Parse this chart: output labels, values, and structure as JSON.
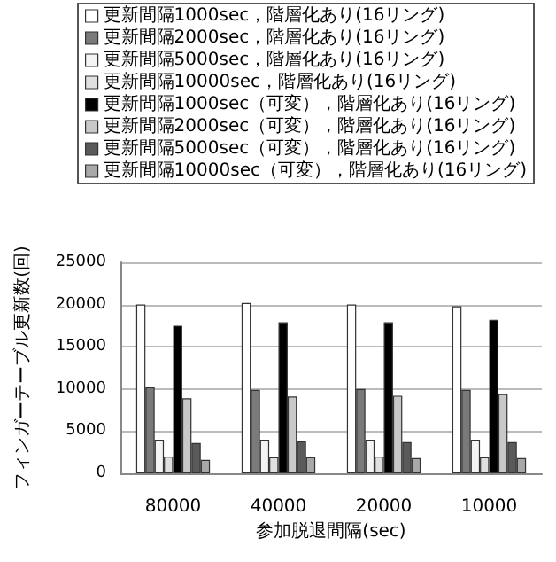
{
  "chart_data": {
    "type": "bar",
    "xlabel": "参加脱退間隔(sec)",
    "ylabel": "フィンガーテーブル更新数(回)",
    "categories": [
      "80000",
      "40000",
      "20000",
      "10000"
    ],
    "series": [
      {
        "name": "更新間隔1000sec，階層化あり(16リング)",
        "color": "#ffffff",
        "values": [
          20000,
          20200,
          20000,
          19800
        ]
      },
      {
        "name": "更新間隔2000sec，階層化あり(16リング)",
        "color": "#7a7a7a",
        "values": [
          10200,
          9900,
          10000,
          9900
        ]
      },
      {
        "name": "更新間隔5000sec，階層化あり(16リング)",
        "color": "#f4f4f4",
        "values": [
          4000,
          4000,
          4000,
          4000
        ]
      },
      {
        "name": "更新間隔10000sec，階層化あり(16リング)",
        "color": "#e0e0e0",
        "values": [
          2000,
          1900,
          2000,
          1900
        ]
      },
      {
        "name": "更新間隔1000sec（可変），階層化あり(16リング)",
        "color": "#000000",
        "values": [
          17500,
          17900,
          17900,
          18200
        ]
      },
      {
        "name": "更新間隔2000sec（可変），階層化あり(16リング)",
        "color": "#c8c8c8",
        "values": [
          8900,
          9100,
          9200,
          9400
        ]
      },
      {
        "name": "更新間隔5000sec（可変），階層化あり(16リング)",
        "color": "#5a5a5a",
        "values": [
          3600,
          3800,
          3700,
          3700
        ]
      },
      {
        "name": "更新間隔10000sec（可変），階層化あり(16リング)",
        "color": "#a8a8a8",
        "values": [
          1600,
          1900,
          1800,
          1800
        ]
      }
    ],
    "ylim": [
      0,
      25000
    ],
    "yticks": [
      0,
      5000,
      10000,
      15000,
      20000,
      25000
    ],
    "grid": "y",
    "legend": "top"
  }
}
